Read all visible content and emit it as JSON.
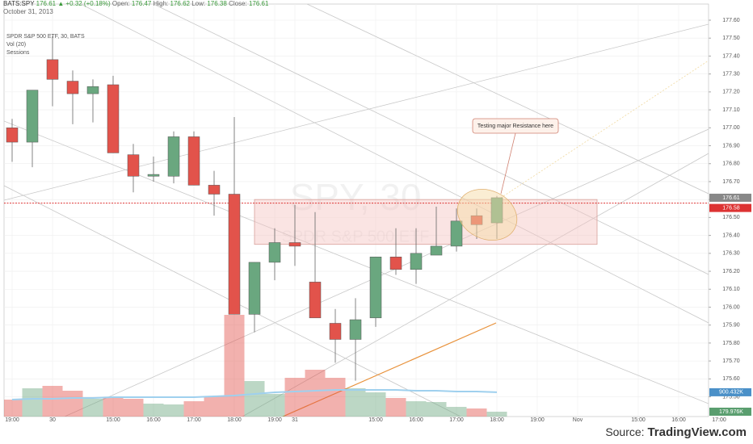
{
  "header": {
    "symbol": "BATS:SPY",
    "last": "176.61",
    "change": "▲ +0.32 (+0.18%)",
    "open_label": "Open:",
    "open": "176.47",
    "high_label": "High:",
    "high": "176.62",
    "low_label": "Low:",
    "low": "176.38",
    "close_label": "Close:",
    "close": "176.61",
    "date": "October 31, 2013"
  },
  "legend": {
    "instrument": "SPDR S&P 500 ETF, 30, BATS",
    "volume": "Vol (20)",
    "sessions": "Sessions"
  },
  "watermark": {
    "symbol": "SPY, 30",
    "name": "SPDR S&P 500 ETF"
  },
  "footer": {
    "source_label": "Source:",
    "source_name": "TradingView.com"
  },
  "chart_data": {
    "type": "candlestick",
    "categories": [
      "19:00",
      null,
      "30",
      null,
      null,
      "15:00",
      null,
      "16:00",
      null,
      "17:00",
      null,
      "18:00",
      null,
      "19:00",
      "31",
      null,
      null,
      null,
      "15:00",
      null,
      "16:00",
      null,
      "17:00",
      null,
      "18:00",
      null,
      "19:00",
      null,
      "Nov",
      null,
      null,
      "15:00",
      null,
      "16:00",
      null,
      "17:00"
    ],
    "open": [
      177.0,
      176.92,
      177.38,
      177.26,
      177.19,
      177.24,
      176.85,
      176.73,
      176.73,
      176.95,
      176.68,
      176.63,
      175.96,
      176.25,
      176.36,
      176.14,
      175.91,
      175.82,
      175.94,
      176.28,
      176.21,
      176.29,
      176.34,
      176.51,
      176.47,
      null,
      null,
      null,
      null,
      null,
      null,
      null,
      null,
      null,
      null,
      null
    ],
    "high": [
      177.05,
      177.21,
      177.51,
      177.32,
      177.27,
      177.29,
      176.91,
      176.84,
      176.98,
      176.98,
      176.76,
      177.06,
      176.25,
      176.44,
      176.57,
      176.53,
      175.99,
      176.05,
      176.28,
      176.44,
      176.44,
      176.56,
      176.55,
      176.55,
      176.62,
      null,
      null,
      null,
      null,
      null,
      null,
      null,
      null,
      null,
      null,
      null
    ],
    "low": [
      176.81,
      176.78,
      177.12,
      177.02,
      177.03,
      176.86,
      176.64,
      176.7,
      176.69,
      176.68,
      176.51,
      175.96,
      175.86,
      176.15,
      176.23,
      175.94,
      175.69,
      175.59,
      175.89,
      176.18,
      176.13,
      176.29,
      176.31,
      176.38,
      176.38,
      null,
      null,
      null,
      null,
      null,
      null,
      null,
      null,
      null,
      null,
      null
    ],
    "close": [
      176.92,
      177.21,
      177.27,
      177.19,
      177.23,
      176.86,
      176.73,
      176.74,
      176.95,
      176.68,
      176.63,
      175.96,
      176.25,
      176.36,
      176.34,
      175.94,
      175.82,
      175.93,
      176.28,
      176.21,
      176.3,
      176.34,
      176.48,
      176.46,
      176.61,
      null,
      null,
      null,
      null,
      null,
      null,
      null,
      null,
      null,
      null,
      null
    ],
    "volume": [
      628000,
      1047000,
      1137000,
      957000,
      658000,
      718000,
      658000,
      479000,
      449000,
      568000,
      748000,
      3769000,
      1316000,
      838000,
      1436000,
      1735000,
      1436000,
      1047000,
      897000,
      688000,
      568000,
      538000,
      359000,
      299000,
      179976,
      null,
      null,
      null,
      null,
      null,
      null,
      null,
      null,
      null,
      null,
      null
    ],
    "volume_ma": [
      628000,
      658000,
      658000,
      688000,
      688000,
      718000,
      718000,
      718000,
      718000,
      718000,
      748000,
      778000,
      838000,
      897000,
      927000,
      957000,
      987000,
      987000,
      987000,
      987000,
      957000,
      957000,
      927000,
      927000,
      900432,
      null,
      null,
      null,
      null,
      null,
      null,
      null,
      null,
      null,
      null,
      null
    ],
    "volume_ma_label": "900.432K",
    "last_volume_label": "179.976K",
    "up_color": "#6aa77f",
    "down_color": "#e2534b",
    "ma_color": "#9fd0ee",
    "ylim": [
      175.39,
      177.69
    ],
    "vlim": [
      0,
      14000000
    ],
    "yticks": [
      {
        "value": 175.5,
        "label": "175.50"
      },
      {
        "value": 175.6,
        "label": "175.60"
      },
      {
        "value": 175.7,
        "label": "175.70"
      },
      {
        "value": 175.8,
        "label": "175.80"
      },
      {
        "value": 175.9,
        "label": "175.90"
      },
      {
        "value": 176.0,
        "label": "176.00"
      },
      {
        "value": 176.1,
        "label": "176.10"
      },
      {
        "value": 176.2,
        "label": "176.20"
      },
      {
        "value": 176.3,
        "label": "176.30"
      },
      {
        "value": 176.4,
        "label": "176.40"
      },
      {
        "value": 176.5,
        "label": "176.50"
      },
      {
        "value": 176.6,
        "label": "176.60"
      },
      {
        "value": 176.7,
        "label": "176.70"
      },
      {
        "value": 176.8,
        "label": "176.80"
      },
      {
        "value": 176.9,
        "label": "176.90"
      },
      {
        "value": 177.0,
        "label": "177.00"
      },
      {
        "value": 177.1,
        "label": "177.10"
      },
      {
        "value": 177.2,
        "label": "177.20"
      },
      {
        "value": 177.3,
        "label": "177.30"
      },
      {
        "value": 177.4,
        "label": "177.40"
      },
      {
        "value": 177.5,
        "label": "177.50"
      },
      {
        "value": 177.6,
        "label": "177.60"
      }
    ],
    "price_line": 176.58,
    "last_price": 176.61,
    "resistance_zone": [
      176.35,
      176.6
    ],
    "annotation": "Testing major Resistance here",
    "grid": true
  }
}
